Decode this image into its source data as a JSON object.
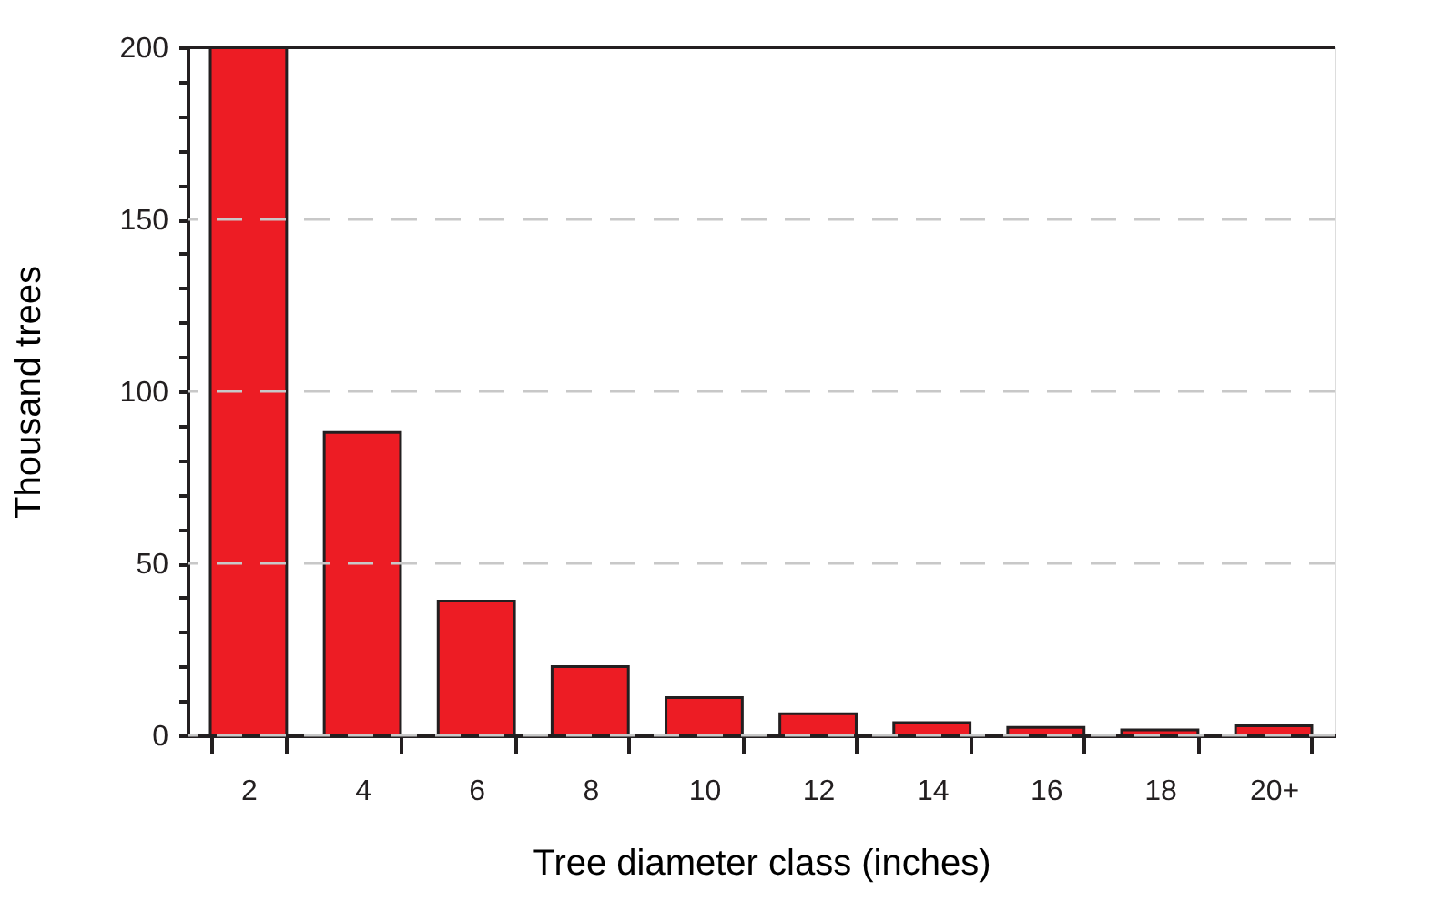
{
  "chart_data": {
    "type": "bar",
    "xlabel": "Tree diameter class (inches)",
    "ylabel": "Thousand trees",
    "categories": [
      "2",
      "4",
      "6",
      "8",
      "10",
      "12",
      "14",
      "16",
      "18",
      "20+"
    ],
    "values": [
      200,
      88,
      39,
      20,
      11,
      6.3,
      3.7,
      2.3,
      1.6,
      2.8
    ],
    "color": "#ed1c24",
    "ylim": [
      0,
      200
    ],
    "yticks": [
      0,
      {
        "value": 10,
        "label": null
      },
      {
        "value": 20,
        "label": null
      },
      {
        "value": 30,
        "label": null
      },
      {
        "value": 40,
        "label": null
      },
      50,
      {
        "value": 60,
        "label": null
      },
      {
        "value": 70,
        "label": null
      },
      {
        "value": 80,
        "label": null
      },
      {
        "value": 90,
        "label": null
      },
      100,
      {
        "value": 110,
        "label": null
      },
      {
        "value": 120,
        "label": null
      },
      {
        "value": 130,
        "label": null
      },
      {
        "value": 140,
        "label": null
      },
      150,
      {
        "value": 160,
        "label": null
      },
      {
        "value": 170,
        "label": null
      },
      {
        "value": 180,
        "label": null
      },
      {
        "value": 190,
        "label": null
      },
      200
    ],
    "grid": "y"
  }
}
